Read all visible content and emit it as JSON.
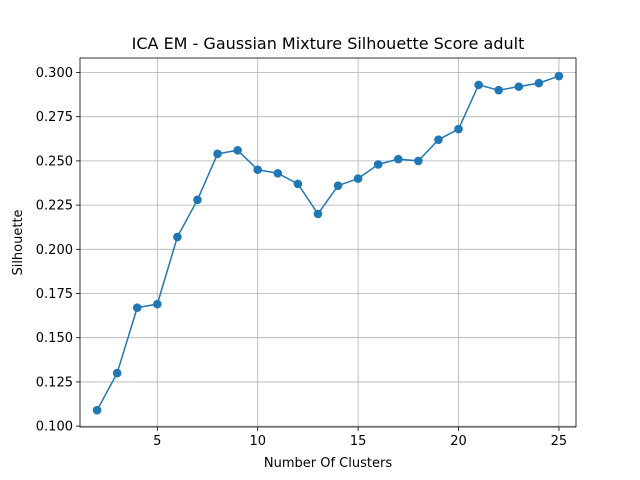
{
  "chart_data": {
    "type": "line",
    "title": "ICA EM - Gaussian Mixture Silhouette Score adult",
    "xlabel": "Number Of Clusters",
    "ylabel": "Silhouette",
    "xlim": [
      1.15,
      25.85
    ],
    "ylim": [
      0.0995,
      0.3082
    ],
    "xticks": [
      5,
      10,
      15,
      20,
      25
    ],
    "yticks": [
      0.1,
      0.125,
      0.15,
      0.175,
      0.2,
      0.225,
      0.25,
      0.275,
      0.3
    ],
    "ytick_labels": [
      "0.100",
      "0.125",
      "0.150",
      "0.175",
      "0.200",
      "0.225",
      "0.250",
      "0.275",
      "0.300"
    ],
    "grid": true,
    "series": [
      {
        "color": "#1f77b4",
        "marker": "circle",
        "x": [
          2,
          3,
          4,
          5,
          6,
          7,
          8,
          9,
          10,
          11,
          12,
          13,
          14,
          15,
          16,
          17,
          18,
          19,
          20,
          21,
          22,
          23,
          24,
          25
        ],
        "y": [
          0.109,
          0.13,
          0.167,
          0.169,
          0.207,
          0.228,
          0.254,
          0.256,
          0.245,
          0.243,
          0.237,
          0.22,
          0.236,
          0.24,
          0.248,
          0.251,
          0.25,
          0.262,
          0.268,
          0.293,
          0.29,
          0.292,
          0.294,
          0.298
        ]
      }
    ]
  }
}
